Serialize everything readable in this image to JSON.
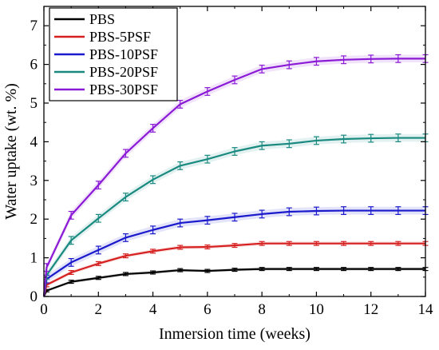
{
  "chart_data": {
    "type": "line",
    "xlabel": "Inmersion time (weeks)",
    "ylabel": "Water uptake (wt. %)",
    "xlim": [
      0,
      14
    ],
    "ylim": [
      0,
      7.5
    ],
    "xticks": [
      "0",
      "2",
      "4",
      "6",
      "8",
      "10",
      "12",
      "14"
    ],
    "yticks": [
      "0",
      "1",
      "2",
      "3",
      "4",
      "5",
      "6",
      "7"
    ],
    "legend_position": "top-left",
    "x": [
      0,
      0.1,
      1,
      2,
      3,
      4,
      5,
      6,
      7,
      8,
      9,
      10,
      11,
      12,
      13,
      14
    ],
    "series": [
      {
        "name": "PBS",
        "color": "#000000",
        "values": [
          0,
          0.15,
          0.38,
          0.48,
          0.58,
          0.62,
          0.68,
          0.66,
          0.69,
          0.71,
          0.71,
          0.71,
          0.71,
          0.71,
          0.71,
          0.71
        ],
        "errors": [
          0.03,
          0.03,
          0.04,
          0.04,
          0.04,
          0.04,
          0.04,
          0.04,
          0.04,
          0.04,
          0.04,
          0.04,
          0.04,
          0.04,
          0.04,
          0.04
        ]
      },
      {
        "name": "PBS-5PSF",
        "color": "#d62020",
        "values": [
          0,
          0.3,
          0.62,
          0.85,
          1.05,
          1.17,
          1.27,
          1.28,
          1.32,
          1.37,
          1.37,
          1.37,
          1.37,
          1.37,
          1.37,
          1.37
        ],
        "errors": [
          0.04,
          0.05,
          0.05,
          0.05,
          0.05,
          0.05,
          0.05,
          0.05,
          0.05,
          0.05,
          0.05,
          0.05,
          0.05,
          0.05,
          0.05,
          0.05
        ]
      },
      {
        "name": "PBS-10PSF",
        "color": "#1a1acc",
        "values": [
          0,
          0.45,
          0.88,
          1.2,
          1.52,
          1.72,
          1.9,
          1.97,
          2.05,
          2.13,
          2.19,
          2.21,
          2.22,
          2.22,
          2.22,
          2.22
        ],
        "errors": [
          0.08,
          0.1,
          0.1,
          0.1,
          0.1,
          0.1,
          0.1,
          0.1,
          0.1,
          0.1,
          0.1,
          0.1,
          0.1,
          0.1,
          0.1,
          0.1
        ]
      },
      {
        "name": "PBS-20PSF",
        "color": "#1a8a80",
        "values": [
          0,
          0.55,
          1.45,
          2.02,
          2.57,
          3.02,
          3.38,
          3.55,
          3.75,
          3.9,
          3.95,
          4.03,
          4.07,
          4.09,
          4.1,
          4.1
        ],
        "errors": [
          0.1,
          0.1,
          0.1,
          0.1,
          0.1,
          0.1,
          0.1,
          0.1,
          0.1,
          0.1,
          0.1,
          0.1,
          0.1,
          0.1,
          0.1,
          0.1
        ]
      },
      {
        "name": "PBS-30PSF",
        "color": "#8a1ad6",
        "values": [
          0,
          0.75,
          2.1,
          2.88,
          3.7,
          4.35,
          4.97,
          5.3,
          5.6,
          5.88,
          5.99,
          6.08,
          6.12,
          6.14,
          6.15,
          6.15
        ],
        "errors": [
          0.1,
          0.1,
          0.1,
          0.1,
          0.1,
          0.1,
          0.1,
          0.1,
          0.1,
          0.1,
          0.1,
          0.1,
          0.1,
          0.1,
          0.1,
          0.1
        ]
      }
    ]
  }
}
